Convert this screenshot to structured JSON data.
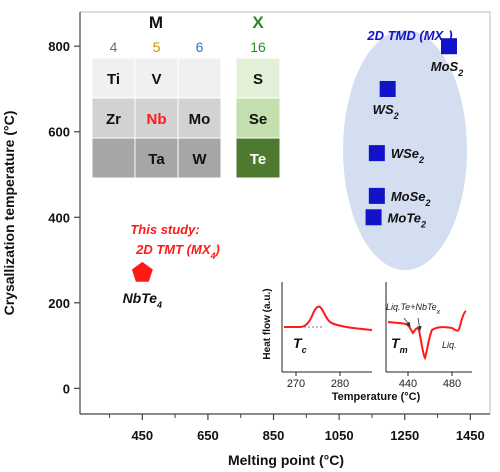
{
  "chart_data": {
    "type": "scatter",
    "xlabel": "Melting point (°C)",
    "ylabel": "Crysallization temperature (°C)",
    "xlim": [
      260,
      1510
    ],
    "ylim": [
      -60,
      880
    ],
    "xticks": [
      450,
      650,
      850,
      1050,
      1250,
      1450
    ],
    "yticks": [
      0,
      200,
      400,
      600,
      800
    ],
    "series": [
      {
        "name": "2D TMD (MX2)",
        "marker": "square",
        "color": "#1212c8",
        "points": [
          {
            "x": 1385,
            "y": 800,
            "label": "MoS2",
            "label_base": "MoS",
            "label_sub": "2"
          },
          {
            "x": 1198,
            "y": 700,
            "label": "WS2",
            "label_base": "WS",
            "label_sub": "2"
          },
          {
            "x": 1165,
            "y": 550,
            "label": "WSe2",
            "label_base": "WSe",
            "label_sub": "2"
          },
          {
            "x": 1165,
            "y": 450,
            "label": "MoSe2",
            "label_base": "MoSe",
            "label_sub": "2"
          },
          {
            "x": 1155,
            "y": 400,
            "label": "MoTe2",
            "label_base": "MoTe",
            "label_sub": "2"
          }
        ]
      },
      {
        "name": "2D TMT (MX4)",
        "marker": "pentagon",
        "color": "#ff1a1a",
        "points": [
          {
            "x": 450,
            "y": 270,
            "label": "NbTe4",
            "label_base": "NbTe",
            "label_sub": "4"
          }
        ]
      }
    ],
    "annotations": {
      "tmd_title": {
        "base": "2D TMD (MX",
        "sub": "2",
        "end": ")",
        "color": "#1212c8"
      },
      "study_line1": {
        "text": "This study:",
        "color": "#ff1a1a"
      },
      "study_line2": {
        "base": "2D TMT (MX",
        "sub": "4",
        "end": ")",
        "color": "#ff1a1a"
      }
    },
    "periodic_table": {
      "group_m": "M",
      "group_x": "X",
      "m_columns": [
        {
          "number": "4",
          "color": "#707070"
        },
        {
          "number": "5",
          "color": "#c89000"
        },
        {
          "number": "6",
          "color": "#2878c8"
        }
      ],
      "x_column": {
        "number": "16",
        "color": "#2a8a2a"
      },
      "m_rows": [
        [
          "Ti",
          "V",
          ""
        ],
        [
          "Zr",
          "Nb",
          "Mo"
        ],
        [
          "",
          "Ta",
          "W"
        ]
      ],
      "x_rows": [
        "S",
        "Se",
        "Te"
      ],
      "highlight": {
        "element": "Nb",
        "color": "#ff1a1a"
      },
      "row_colors": [
        "#f0f0f0",
        "#d2d2d2",
        "#a6a6a6"
      ],
      "x_row_colors": [
        "#e3f0d8",
        "#c2dfad",
        "#4e7a2f"
      ]
    },
    "inset": {
      "ylabel": "Heat flow (a.u.)",
      "xlabel": "Temperature (°C)",
      "left_panel": {
        "xticks": [
          "270",
          "280"
        ],
        "label_base": "T",
        "label_sub": "c"
      },
      "right_panel": {
        "xticks": [
          "440",
          "480"
        ],
        "label_base": "T",
        "label_sub": "m",
        "annotation_base": "Liq.Te+NbTe",
        "annotation_sub": "x",
        "annotation_liq": "Liq."
      }
    }
  }
}
